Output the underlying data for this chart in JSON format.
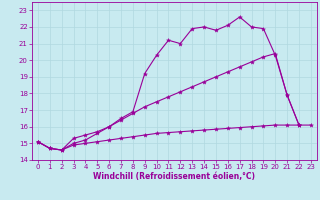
{
  "xlabel": "Windchill (Refroidissement éolien,°C)",
  "background_color": "#c8eaf0",
  "line_color": "#990099",
  "grid_color": "#b0d8e0",
  "xlim": [
    -0.5,
    23.5
  ],
  "ylim": [
    14,
    23.5
  ],
  "xticks": [
    0,
    1,
    2,
    3,
    4,
    5,
    6,
    7,
    8,
    9,
    10,
    11,
    12,
    13,
    14,
    15,
    16,
    17,
    18,
    19,
    20,
    21,
    22,
    23
  ],
  "yticks": [
    14,
    15,
    16,
    17,
    18,
    19,
    20,
    21,
    22,
    23
  ],
  "line1_x": [
    0,
    1,
    2,
    3,
    4,
    5,
    6,
    7,
    8,
    9,
    10,
    11,
    12,
    13,
    14,
    15,
    16,
    17,
    18,
    19,
    20,
    21,
    22,
    23
  ],
  "line1_y": [
    15.1,
    14.7,
    14.6,
    14.9,
    15.0,
    15.1,
    15.2,
    15.3,
    15.4,
    15.5,
    15.6,
    15.65,
    15.7,
    15.75,
    15.8,
    15.85,
    15.9,
    15.95,
    16.0,
    16.05,
    16.1,
    16.1,
    16.1,
    16.1
  ],
  "line2_x": [
    0,
    1,
    2,
    3,
    4,
    5,
    6,
    7,
    8,
    9,
    10,
    11,
    12,
    13,
    14,
    15,
    16,
    17,
    18,
    19,
    20,
    21,
    22
  ],
  "line2_y": [
    15.1,
    14.7,
    14.6,
    15.3,
    15.5,
    15.7,
    16.0,
    16.4,
    16.8,
    17.2,
    17.5,
    17.8,
    18.1,
    18.4,
    18.7,
    19.0,
    19.3,
    19.6,
    19.9,
    20.2,
    20.4,
    17.9,
    16.1
  ],
  "line3_x": [
    0,
    1,
    2,
    3,
    4,
    5,
    6,
    7,
    8,
    9,
    10,
    11,
    12,
    13,
    14,
    15,
    16,
    17,
    18,
    19,
    20,
    21,
    22
  ],
  "line3_y": [
    15.1,
    14.7,
    14.6,
    15.0,
    15.2,
    15.6,
    16.0,
    16.5,
    16.9,
    19.2,
    20.3,
    21.2,
    21.0,
    21.9,
    22.0,
    21.8,
    22.1,
    22.6,
    22.0,
    21.9,
    20.3,
    17.9,
    16.1
  ],
  "marker": "*",
  "markersize": 3,
  "linewidth": 0.8,
  "xlabel_fontsize": 5.5,
  "tick_fontsize": 5.0
}
